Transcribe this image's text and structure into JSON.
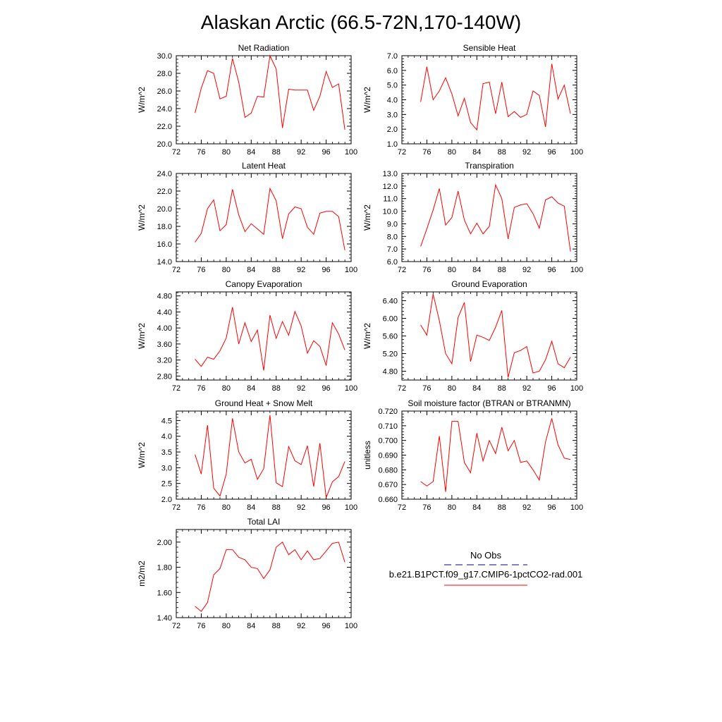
{
  "page_title": "Alaskan Arctic (66.5-72N,170-140W)",
  "legend": {
    "obs_label": "No Obs",
    "obs_color": "#3333aa",
    "model_label": "b.e21.B1PCT.f09_g17.CMIP6-1pctCO2-rad.001",
    "model_color": "#ff0000"
  },
  "chart_data": [
    {
      "type": "line",
      "title": "Net Radiation",
      "ylabel": "W/m^2",
      "xlim": [
        72,
        100
      ],
      "ylim": [
        20,
        30
      ],
      "xticks": [
        "72",
        "76",
        "80",
        "84",
        "88",
        "92",
        "96",
        "100"
      ],
      "yticks": [
        "20.0",
        "22.0",
        "24.0",
        "26.0",
        "28.0",
        "30.0"
      ],
      "series": [
        {
          "color": "#ff0000",
          "x": [
            75,
            76,
            77,
            78,
            79,
            80,
            81,
            82,
            83,
            84,
            85,
            86,
            87,
            88,
            89,
            90,
            91,
            92,
            93,
            94,
            95,
            96,
            97,
            98,
            99
          ],
          "y": [
            23.5,
            26.3,
            28.3,
            28.0,
            25.1,
            25.4,
            29.7,
            27.0,
            23.0,
            23.5,
            25.4,
            25.3,
            30.0,
            28.5,
            21.8,
            26.2,
            26.1,
            26.1,
            26.1,
            23.8,
            25.4,
            28.2,
            26.4,
            26.8,
            21.6
          ]
        }
      ]
    },
    {
      "type": "line",
      "title": "Sensible Heat",
      "ylabel": "W/m^2",
      "xlim": [
        72,
        100
      ],
      "ylim": [
        1,
        7
      ],
      "xticks": [
        "72",
        "76",
        "80",
        "84",
        "88",
        "92",
        "96",
        "100"
      ],
      "yticks": [
        "1.0",
        "2.0",
        "3.0",
        "4.0",
        "5.0",
        "6.0",
        "7.0"
      ],
      "series": [
        {
          "color": "#ff0000",
          "x": [
            75,
            76,
            77,
            78,
            79,
            80,
            81,
            82,
            83,
            84,
            85,
            86,
            87,
            88,
            89,
            90,
            91,
            92,
            93,
            94,
            95,
            96,
            97,
            98,
            99
          ],
          "y": [
            3.85,
            6.25,
            4.0,
            4.6,
            5.5,
            4.4,
            2.9,
            4.1,
            2.45,
            1.95,
            5.1,
            5.2,
            3.05,
            5.2,
            2.85,
            3.2,
            2.8,
            3.0,
            4.6,
            4.3,
            2.15,
            6.45,
            4.05,
            5.0,
            3.05
          ]
        }
      ]
    },
    {
      "type": "line",
      "title": "Latent Heat",
      "ylabel": "W/m^2",
      "xlim": [
        72,
        100
      ],
      "ylim": [
        14,
        24
      ],
      "xticks": [
        "72",
        "76",
        "80",
        "84",
        "88",
        "92",
        "96",
        "100"
      ],
      "yticks": [
        "14.0",
        "16.0",
        "18.0",
        "20.0",
        "22.0",
        "24.0"
      ],
      "series": [
        {
          "color": "#ff0000",
          "x": [
            75,
            76,
            77,
            78,
            79,
            80,
            81,
            82,
            83,
            84,
            85,
            86,
            87,
            88,
            89,
            90,
            91,
            92,
            93,
            94,
            95,
            96,
            97,
            98,
            99
          ],
          "y": [
            16.2,
            17.2,
            20.0,
            21.0,
            17.5,
            18.2,
            22.2,
            19.3,
            17.4,
            18.3,
            17.7,
            17.1,
            22.3,
            20.9,
            16.6,
            19.4,
            20.2,
            20.0,
            17.9,
            17.1,
            19.5,
            19.7,
            19.7,
            19.1,
            15.3
          ]
        }
      ]
    },
    {
      "type": "line",
      "title": "Transpiration",
      "ylabel": "W/m^2",
      "xlim": [
        72,
        100
      ],
      "ylim": [
        6,
        13
      ],
      "xticks": [
        "72",
        "76",
        "80",
        "84",
        "88",
        "92",
        "96",
        "100"
      ],
      "yticks": [
        "6.0",
        "7.0",
        "8.0",
        "9.0",
        "10.0",
        "11.0",
        "12.0",
        "13.0"
      ],
      "series": [
        {
          "color": "#ff0000",
          "x": [
            75,
            76,
            77,
            78,
            79,
            80,
            81,
            82,
            83,
            84,
            85,
            86,
            87,
            88,
            89,
            90,
            91,
            92,
            93,
            94,
            95,
            96,
            97,
            98,
            99
          ],
          "y": [
            7.2,
            8.6,
            10.1,
            11.8,
            8.9,
            9.5,
            11.6,
            9.3,
            8.2,
            9.05,
            8.2,
            8.8,
            12.1,
            11.0,
            7.8,
            10.3,
            10.5,
            10.6,
            9.8,
            8.65,
            10.9,
            11.15,
            10.65,
            10.4,
            6.8
          ]
        }
      ]
    },
    {
      "type": "line",
      "title": "Canopy Evaporation",
      "ylabel": "W/m^2",
      "xlim": [
        72,
        100
      ],
      "ylim": [
        2.7,
        4.9
      ],
      "xticks": [
        "72",
        "76",
        "80",
        "84",
        "88",
        "92",
        "96",
        "100"
      ],
      "yticks": [
        "2.80",
        "3.20",
        "3.60",
        "4.00",
        "4.40",
        "4.80"
      ],
      "series": [
        {
          "color": "#ff0000",
          "x": [
            75,
            76,
            77,
            78,
            79,
            80,
            81,
            82,
            83,
            84,
            85,
            86,
            87,
            88,
            89,
            90,
            91,
            92,
            93,
            94,
            95,
            96,
            97,
            98,
            99
          ],
          "y": [
            3.22,
            3.04,
            3.27,
            3.22,
            3.43,
            3.75,
            4.52,
            3.6,
            4.13,
            3.66,
            3.95,
            2.94,
            4.32,
            3.74,
            4.16,
            3.82,
            4.41,
            4.05,
            3.37,
            3.68,
            3.54,
            3.06,
            4.13,
            3.85,
            3.45
          ]
        }
      ]
    },
    {
      "type": "line",
      "title": "Ground Evaporation",
      "ylabel": "W/m^2",
      "xlim": [
        72,
        100
      ],
      "ylim": [
        4.6,
        6.6
      ],
      "xticks": [
        "72",
        "76",
        "80",
        "84",
        "88",
        "92",
        "96",
        "100"
      ],
      "yticks": [
        "4.80",
        "5.20",
        "5.60",
        "6.00",
        "6.40"
      ],
      "series": [
        {
          "color": "#ff0000",
          "x": [
            75,
            76,
            77,
            78,
            79,
            80,
            81,
            82,
            83,
            84,
            85,
            86,
            87,
            88,
            89,
            90,
            91,
            92,
            93,
            94,
            95,
            96,
            97,
            98,
            99
          ],
          "y": [
            5.85,
            5.62,
            6.55,
            5.95,
            5.2,
            4.97,
            6.02,
            6.36,
            5.02,
            5.62,
            5.57,
            5.5,
            5.8,
            6.18,
            4.66,
            5.22,
            5.27,
            5.36,
            4.76,
            4.8,
            5.06,
            5.48,
            4.97,
            4.88,
            5.12
          ]
        }
      ]
    },
    {
      "type": "line",
      "title": "Ground Heat + Snow Melt",
      "ylabel": "W/m^2",
      "xlim": [
        72,
        100
      ],
      "ylim": [
        2.0,
        4.8
      ],
      "xticks": [
        "72",
        "76",
        "80",
        "84",
        "88",
        "92",
        "96",
        "100"
      ],
      "yticks": [
        "2.0",
        "2.5",
        "3.0",
        "3.5",
        "4.0",
        "4.5"
      ],
      "series": [
        {
          "color": "#ff0000",
          "x": [
            75,
            76,
            77,
            78,
            79,
            80,
            81,
            82,
            83,
            84,
            85,
            86,
            87,
            88,
            89,
            90,
            91,
            92,
            93,
            94,
            95,
            96,
            97,
            98,
            99
          ],
          "y": [
            3.42,
            2.8,
            4.35,
            2.35,
            2.1,
            2.8,
            4.57,
            3.5,
            3.15,
            3.27,
            2.63,
            2.97,
            4.67,
            2.52,
            2.4,
            3.67,
            3.22,
            3.1,
            3.7,
            2.4,
            3.78,
            2.05,
            2.55,
            2.72,
            3.2
          ]
        }
      ]
    },
    {
      "type": "line",
      "title": "Soil moisture factor (BTRAN or BTRANMN)",
      "ylabel": "unitless",
      "xlim": [
        72,
        100
      ],
      "ylim": [
        0.66,
        0.72
      ],
      "xticks": [
        "72",
        "76",
        "80",
        "84",
        "88",
        "92",
        "96",
        "100"
      ],
      "yticks": [
        "0.660",
        "0.670",
        "0.680",
        "0.690",
        "0.700",
        "0.710",
        "0.720"
      ],
      "series": [
        {
          "color": "#ff0000",
          "x": [
            75,
            76,
            77,
            78,
            79,
            80,
            81,
            82,
            83,
            84,
            85,
            86,
            87,
            88,
            89,
            90,
            91,
            92,
            93,
            94,
            95,
            96,
            97,
            98,
            99
          ],
          "y": [
            0.672,
            0.669,
            0.672,
            0.703,
            0.665,
            0.713,
            0.713,
            0.685,
            0.678,
            0.705,
            0.686,
            0.7,
            0.691,
            0.709,
            0.693,
            0.7,
            0.685,
            0.686,
            0.68,
            0.673,
            0.699,
            0.715,
            0.697,
            0.688,
            0.687
          ]
        }
      ]
    },
    {
      "type": "line",
      "title": "Total LAI",
      "ylabel": "m2/m2",
      "xlim": [
        72,
        100
      ],
      "ylim": [
        1.4,
        2.1
      ],
      "xticks": [
        "72",
        "76",
        "80",
        "84",
        "88",
        "92",
        "96",
        "100"
      ],
      "yticks": [
        "1.40",
        "1.60",
        "1.80",
        "2.00"
      ],
      "series": [
        {
          "color": "#ff0000",
          "x": [
            75,
            76,
            77,
            78,
            79,
            80,
            81,
            82,
            83,
            84,
            85,
            86,
            87,
            88,
            89,
            90,
            91,
            92,
            93,
            94,
            95,
            96,
            97,
            98,
            99
          ],
          "y": [
            1.49,
            1.45,
            1.52,
            1.74,
            1.79,
            1.94,
            1.94,
            1.88,
            1.86,
            1.8,
            1.79,
            1.71,
            1.78,
            1.96,
            2.0,
            1.9,
            1.94,
            1.86,
            1.93,
            1.86,
            1.87,
            1.93,
            1.99,
            2.0,
            1.84
          ]
        }
      ]
    }
  ]
}
